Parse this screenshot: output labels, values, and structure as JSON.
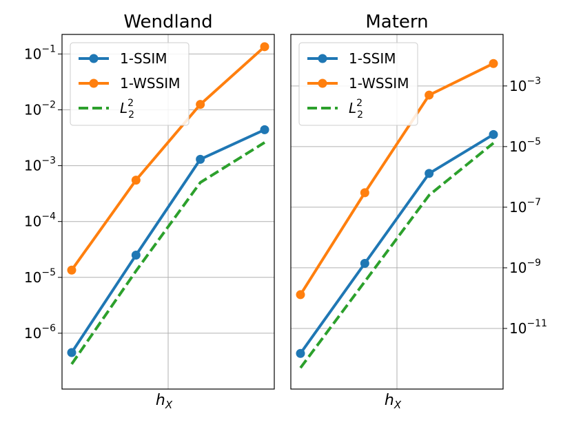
{
  "chart_data": [
    {
      "type": "line",
      "title": "Wendland",
      "xlabel_base": "h",
      "xlabel_sub": "X",
      "x": [
        1,
        2,
        3,
        4
      ],
      "yscale": "log",
      "ylim_exp": [
        -7.0,
        -0.65
      ],
      "y_tick_exps": [
        -6,
        -5,
        -4,
        -3,
        -2,
        -1
      ],
      "y_axis_side": "left",
      "grid": true,
      "legend_position": "top-left",
      "series": [
        {
          "name": "1-SSIM",
          "color": "#1f77b4",
          "dash": "solid",
          "marker": true,
          "values": [
            4.5e-07,
            2.5e-05,
            0.0013,
            0.0044
          ]
        },
        {
          "name": "1-WSSIM",
          "color": "#ff7f0e",
          "dash": "solid",
          "marker": true,
          "values": [
            1.35e-05,
            0.00055,
            0.0125,
            0.135
          ]
        },
        {
          "name": "L",
          "name_sub": "2",
          "name_sup": "2",
          "color": "#2ca02c",
          "dash": "dashed",
          "marker": false,
          "values": [
            2.8e-07,
            1.3e-05,
            0.0005,
            0.0026
          ]
        }
      ]
    },
    {
      "type": "line",
      "title": "Matern",
      "xlabel_base": "h",
      "xlabel_sub": "X",
      "x": [
        1,
        2,
        3,
        4
      ],
      "yscale": "log",
      "ylim_exp": [
        -13.0,
        -1.3
      ],
      "y_tick_exps": [
        -11,
        -9,
        -7,
        -5,
        -3
      ],
      "y_axis_side": "right",
      "grid": true,
      "legend_position": "top-left",
      "series": [
        {
          "name": "1-SSIM",
          "color": "#1f77b4",
          "dash": "solid",
          "marker": true,
          "values": [
            1.5e-12,
            1.4e-09,
            1.3e-06,
            2.5e-05
          ]
        },
        {
          "name": "1-WSSIM",
          "color": "#ff7f0e",
          "dash": "solid",
          "marker": true,
          "values": [
            1.3e-10,
            3e-07,
            0.0005,
            0.0055
          ]
        },
        {
          "name": "L",
          "name_sub": "2",
          "name_sup": "2",
          "color": "#2ca02c",
          "dash": "dashed",
          "marker": false,
          "values": [
            5e-13,
            3.5e-10,
            2.5e-07,
            1.3e-05
          ]
        }
      ]
    }
  ]
}
